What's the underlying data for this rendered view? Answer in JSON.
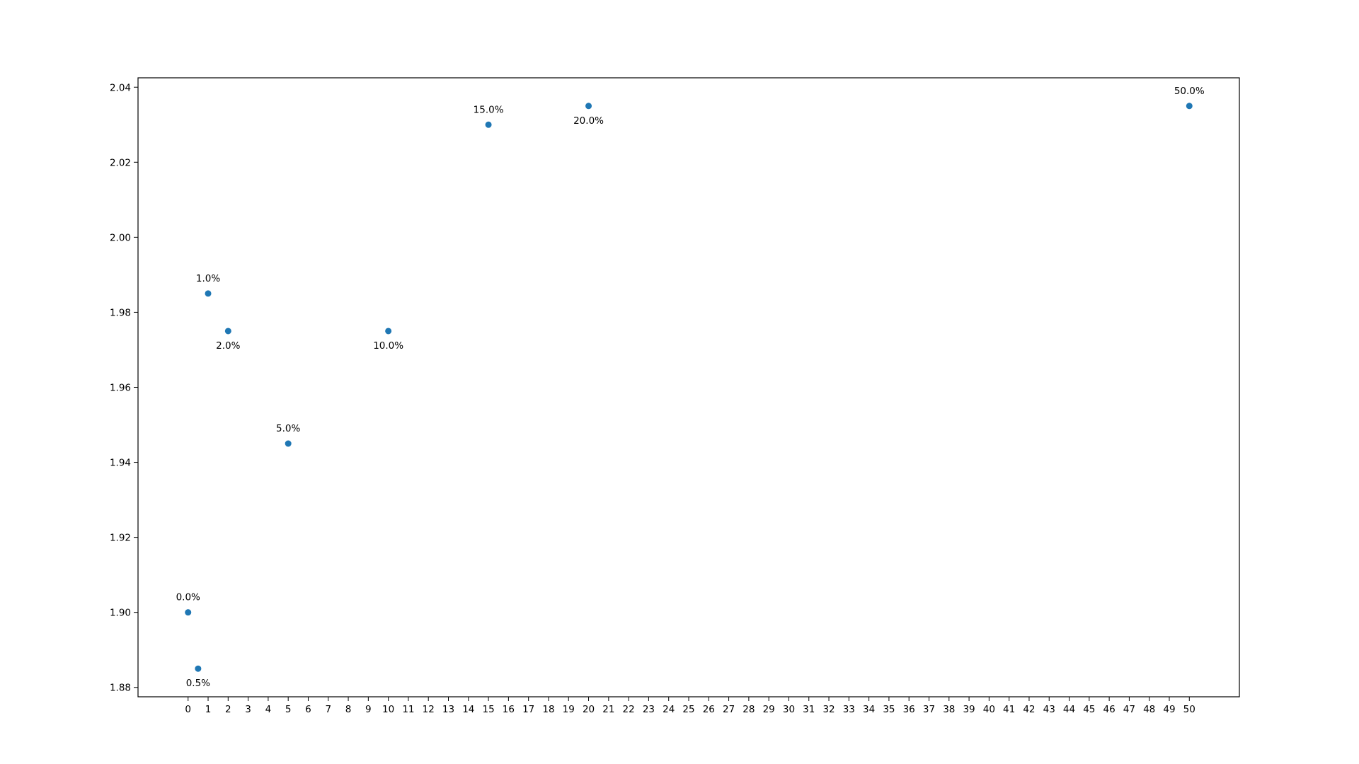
{
  "chart_data": {
    "type": "scatter",
    "title": "",
    "xlabel": "",
    "ylabel": "",
    "xlim": [
      -2.5,
      52.5
    ],
    "ylim": [
      1.8775,
      2.0425
    ],
    "x_ticks": [
      0,
      1,
      2,
      3,
      4,
      5,
      6,
      7,
      8,
      9,
      10,
      11,
      12,
      13,
      14,
      15,
      16,
      17,
      18,
      19,
      20,
      21,
      22,
      23,
      24,
      25,
      26,
      27,
      28,
      29,
      30,
      31,
      32,
      33,
      34,
      35,
      36,
      37,
      38,
      39,
      40,
      41,
      42,
      43,
      44,
      45,
      46,
      47,
      48,
      49,
      50
    ],
    "y_ticks": [
      "1.88",
      "1.90",
      "1.92",
      "1.94",
      "1.96",
      "1.98",
      "2.00",
      "2.02",
      "2.04"
    ],
    "grid": false,
    "marker_color": "#1f77b4",
    "points": [
      {
        "x": 0,
        "y": 1.9,
        "label": "0.0%",
        "label_pos": "above"
      },
      {
        "x": 0.5,
        "y": 1.885,
        "label": "0.5%",
        "label_pos": "below"
      },
      {
        "x": 1,
        "y": 1.985,
        "label": "1.0%",
        "label_pos": "above"
      },
      {
        "x": 2,
        "y": 1.975,
        "label": "2.0%",
        "label_pos": "below"
      },
      {
        "x": 5,
        "y": 1.945,
        "label": "5.0%",
        "label_pos": "above"
      },
      {
        "x": 10,
        "y": 1.975,
        "label": "10.0%",
        "label_pos": "below"
      },
      {
        "x": 15,
        "y": 2.03,
        "label": "15.0%",
        "label_pos": "above"
      },
      {
        "x": 20,
        "y": 2.035,
        "label": "20.0%",
        "label_pos": "below"
      },
      {
        "x": 50,
        "y": 2.035,
        "label": "50.0%",
        "label_pos": "above"
      }
    ]
  }
}
